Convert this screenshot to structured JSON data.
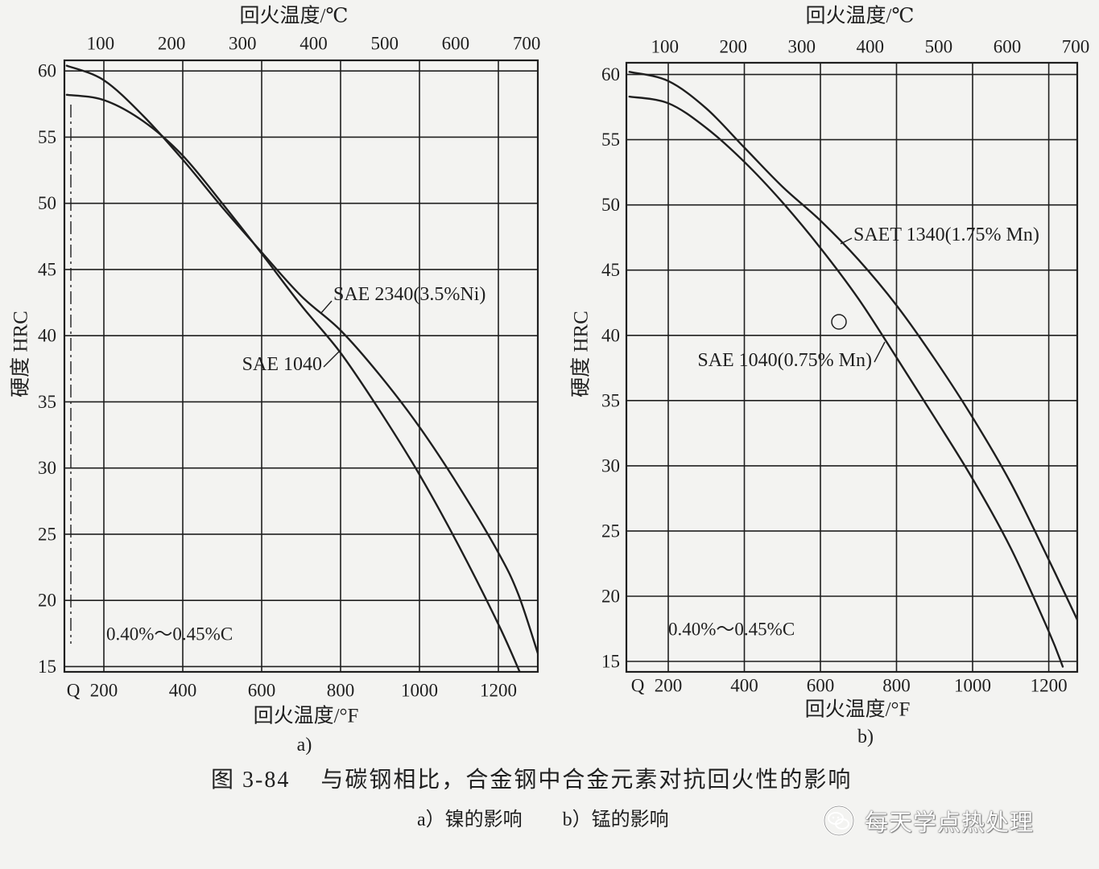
{
  "figure": {
    "number": "图 3-84",
    "title": "与碳钢相比，合金钢中合金元素对抗回火性的影响",
    "subcaptions": [
      "a）镍的影响",
      "b）锰的影响"
    ]
  },
  "watermark": {
    "icon": "wechat-icon",
    "text": "每天学点热处理"
  },
  "colors": {
    "ink": "#1f1f1f",
    "paper": "#f3f3f1"
  },
  "chart_data": [
    {
      "type": "line",
      "panel_label": "a)",
      "x2label": "回火温度/℃",
      "xlabel": "回火温度/°F",
      "ylabel": "硬度 HRC",
      "xlim": [
        100,
        1300
      ],
      "ylim": [
        14.6,
        60.8
      ],
      "x_origin_label": "Q",
      "x_ticks": [
        200,
        400,
        600,
        800,
        1000,
        1200
      ],
      "x2_ticks": [
        100,
        200,
        300,
        400,
        500,
        600,
        700
      ],
      "y_ticks": [
        15,
        20,
        25,
        30,
        35,
        40,
        45,
        50,
        55,
        60
      ],
      "grid": true,
      "annotation": "0.40%～0.45%C",
      "series": [
        {
          "name": "SAE 2340(3.5%Ni)",
          "x": [
            106,
            200,
            300,
            400,
            500,
            600,
            700,
            800,
            900,
            1000,
            1100,
            1200,
            1250,
            1300
          ],
          "y": [
            60.4,
            59.3,
            56.6,
            53.3,
            49.7,
            46.3,
            43.0,
            40.4,
            37.0,
            33.1,
            28.6,
            23.6,
            20.5,
            16.0
          ]
        },
        {
          "name": "SAE 1040",
          "x": [
            106,
            200,
            300,
            400,
            500,
            600,
            700,
            800,
            900,
            1000,
            1100,
            1200,
            1254
          ],
          "y": [
            58.2,
            57.8,
            56.2,
            53.6,
            50.0,
            46.2,
            42.3,
            38.7,
            34.3,
            29.5,
            24.1,
            18.2,
            14.6
          ]
        }
      ]
    },
    {
      "type": "line",
      "panel_label": "b)",
      "x2label": "回火温度/℃",
      "xlabel": "回火温度/°F",
      "ylabel": "硬度 HRC",
      "xlim": [
        90,
        1275
      ],
      "ylim": [
        14.2,
        60.9
      ],
      "x_origin_label": "Q",
      "x_ticks": [
        200,
        400,
        600,
        800,
        1000,
        1200
      ],
      "x2_ticks": [
        100,
        200,
        300,
        400,
        500,
        600,
        700
      ],
      "y_ticks": [
        15,
        20,
        25,
        30,
        35,
        40,
        45,
        50,
        55,
        60
      ],
      "grid": true,
      "annotation": "0.40%～0.45%C",
      "series": [
        {
          "name": "SAET 1340(1.75% Mn)",
          "x": [
            98,
            200,
            300,
            400,
            500,
            600,
            700,
            800,
            900,
            1000,
            1100,
            1200,
            1275
          ],
          "y": [
            60.2,
            59.5,
            57.4,
            54.4,
            51.4,
            48.8,
            45.8,
            42.3,
            38.2,
            33.7,
            28.7,
            22.8,
            18.2
          ]
        },
        {
          "name": "SAE 1040(0.75% Mn)",
          "x": [
            98,
            200,
            300,
            400,
            500,
            600,
            700,
            800,
            900,
            1000,
            1100,
            1200,
            1237
          ],
          "y": [
            58.3,
            57.8,
            55.9,
            53.3,
            50.2,
            46.7,
            42.8,
            38.3,
            33.7,
            29.0,
            23.7,
            17.3,
            14.6
          ]
        }
      ]
    }
  ]
}
